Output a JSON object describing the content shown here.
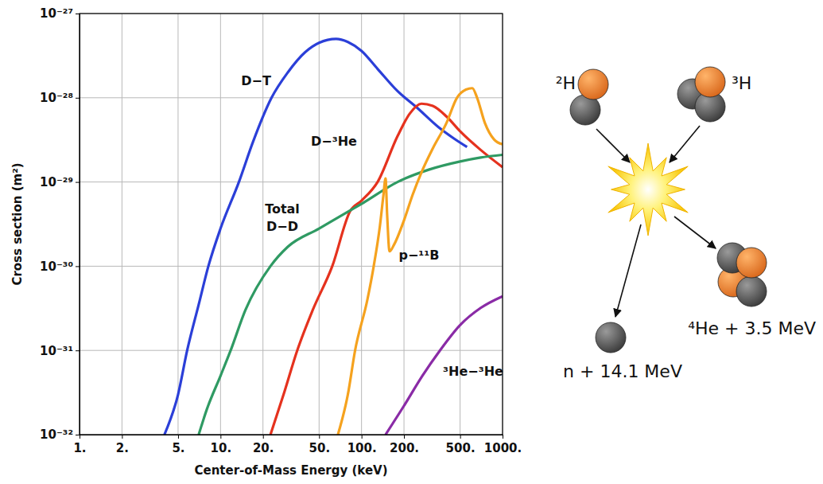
{
  "chart_data": {
    "type": "line",
    "log": true,
    "grid": true,
    "x_label": "Center-of-Mass Energy (keV)",
    "y_label": "Cross section (m²)",
    "xlim": [
      1,
      1000
    ],
    "ylim": [
      1e-32,
      1e-27
    ],
    "xticks": [
      {
        "value": 1,
        "label": "1."
      },
      {
        "value": 2,
        "label": "2."
      },
      {
        "value": 5,
        "label": "5."
      },
      {
        "value": 10,
        "label": "10."
      },
      {
        "value": 20,
        "label": "20."
      },
      {
        "value": 50,
        "label": "50."
      },
      {
        "value": 100,
        "label": "100."
      },
      {
        "value": 200,
        "label": "200."
      },
      {
        "value": 500,
        "label": "500."
      },
      {
        "value": 1000,
        "label": "1000."
      }
    ],
    "yticks": [
      {
        "value": 1e-32,
        "label": "10⁻³²"
      },
      {
        "value": 1e-31,
        "label": "10⁻³¹"
      },
      {
        "value": 1e-30,
        "label": "10⁻³⁰"
      },
      {
        "value": 1e-29,
        "label": "10⁻²⁹"
      },
      {
        "value": 1e-28,
        "label": "10⁻²⁸"
      },
      {
        "value": 1e-27,
        "label": "10⁻²⁷"
      }
    ],
    "series": [
      {
        "name": "D−T",
        "color": "#2b3fd8",
        "x": [
          4,
          5,
          5.8,
          7,
          8.2,
          10,
          13.5,
          17,
          23,
          30,
          40,
          50,
          66,
          80,
          100,
          130,
          180,
          250,
          350,
          450,
          560
        ],
        "values": [
          1e-32,
          3e-32,
          1e-31,
          3.5e-31,
          1e-30,
          2.8e-30,
          1e-29,
          3e-29,
          1e-28,
          2e-28,
          3.5e-28,
          4.5e-28,
          5e-28,
          4.6e-28,
          3.6e-28,
          2.2e-28,
          1.2e-28,
          7.5e-29,
          4.5e-29,
          3.3e-29,
          2.6e-29
        ]
      },
      {
        "name": "D−³He",
        "color": "#e5321e",
        "x": [
          22.6,
          28,
          35,
          45,
          62,
          83,
          100,
          130,
          180,
          220,
          266,
          320,
          400,
          500,
          700,
          1000
        ],
        "values": [
          1e-32,
          3e-32,
          1e-31,
          3e-31,
          1e-30,
          4.5e-30,
          6e-30,
          1e-29,
          3.5e-29,
          6.5e-29,
          8.5e-29,
          8e-29,
          6e-29,
          4e-29,
          2.4e-29,
          1.5e-29
        ]
      },
      {
        "name": "Total D−D",
        "color": "#2f9a63",
        "x": [
          7,
          8,
          10,
          11.8,
          15,
          22.6,
          30,
          50,
          83,
          100,
          180,
          300,
          500,
          700,
          1000
        ],
        "values": [
          1e-32,
          2e-32,
          5e-32,
          1e-31,
          3e-31,
          1e-30,
          1.7e-30,
          2.8e-30,
          4.6e-30,
          5.5e-30,
          1e-29,
          1.4e-29,
          1.75e-29,
          1.95e-29,
          2.1e-29
        ]
      },
      {
        "name": "p−¹¹B",
        "color": "#f5a21e",
        "x": [
          68,
          80,
          90,
          110,
          122,
          135,
          143,
          148,
          152,
          158,
          170,
          200,
          230,
          266,
          320,
          400,
          475,
          550,
          610,
          660,
          750,
          870,
          1000
        ],
        "values": [
          1e-32,
          3e-32,
          1e-31,
          4e-31,
          1e-30,
          3e-30,
          7e-30,
          1.1e-29,
          4e-30,
          1.5e-30,
          1.8e-30,
          3.5e-30,
          7e-30,
          1.3e-29,
          2.5e-29,
          5e-29,
          1e-28,
          1.25e-28,
          1.3e-28,
          1e-28,
          5e-29,
          3.2e-29,
          2.8e-29
        ]
      },
      {
        "name": "³He−³He",
        "color": "#8a2ba6",
        "x": [
          148,
          200,
          270,
          360,
          500,
          700,
          1000
        ],
        "values": [
          1e-32,
          2.2e-32,
          5e-32,
          1e-31,
          2e-31,
          3.2e-31,
          4.4e-31
        ]
      }
    ]
  },
  "diagram": {
    "reactants": [
      {
        "label": "²H"
      },
      {
        "label": "³H"
      }
    ],
    "products": [
      {
        "label": "n + 14.1 MeV"
      },
      {
        "label": "⁴He + 3.5 MeV"
      }
    ]
  }
}
